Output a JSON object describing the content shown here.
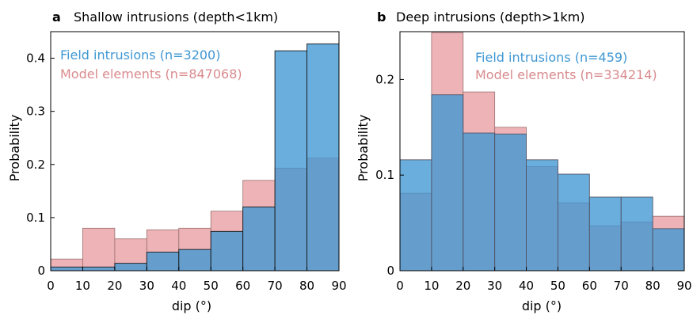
{
  "chart_data": [
    {
      "type": "bar",
      "panel_letter": "a",
      "title": "Shallow intrusions (depth<1km)",
      "xlabel": "dip (°)",
      "ylabel": "Probability",
      "bin_edges": [
        0,
        10,
        20,
        30,
        40,
        50,
        60,
        70,
        80,
        90
      ],
      "xticks": [
        "0",
        "10",
        "20",
        "30",
        "40",
        "50",
        "60",
        "70",
        "80",
        "90"
      ],
      "ylim": [
        0,
        0.45
      ],
      "yticks": [
        0,
        0.1,
        0.2,
        0.3,
        0.4
      ],
      "ytick_labels": [
        "0",
        "0.1",
        "0.2",
        "0.3",
        "0.4"
      ],
      "series": [
        {
          "name": "Model elements (n=847068)",
          "color": "#e8a0a4",
          "values": [
            0.022,
            0.08,
            0.06,
            0.077,
            0.08,
            0.112,
            0.17,
            0.193,
            0.212
          ]
        },
        {
          "name": "Field intrusions (n=3200)",
          "color": "#3f97d3",
          "values": [
            0.007,
            0.007,
            0.014,
            0.035,
            0.04,
            0.074,
            0.12,
            0.414,
            0.427
          ]
        }
      ],
      "legend_position": "top-left"
    },
    {
      "type": "bar",
      "panel_letter": "b",
      "title": "Deep intrusions (depth>1km)",
      "xlabel": "dip (°)",
      "ylabel": "Probability",
      "bin_edges": [
        0,
        10,
        20,
        30,
        40,
        50,
        60,
        70,
        80,
        90
      ],
      "xticks": [
        "0",
        "10",
        "20",
        "30",
        "40",
        "50",
        "60",
        "70",
        "80",
        "90"
      ],
      "ylim": [
        0,
        0.25
      ],
      "yticks": [
        0,
        0.1,
        0.2
      ],
      "ytick_labels": [
        "0",
        "0.1",
        "0.2"
      ],
      "series": [
        {
          "name": "Model elements (n=334214)",
          "color": "#e8a0a4",
          "values": [
            0.081,
            0.249,
            0.187,
            0.15,
            0.109,
            0.071,
            0.047,
            0.051,
            0.057
          ]
        },
        {
          "name": "Field intrusions (n=459)",
          "color": "#3f97d3",
          "values": [
            0.116,
            0.184,
            0.144,
            0.143,
            0.116,
            0.101,
            0.077,
            0.077,
            0.044
          ]
        }
      ],
      "legend_position": "top-right"
    }
  ]
}
